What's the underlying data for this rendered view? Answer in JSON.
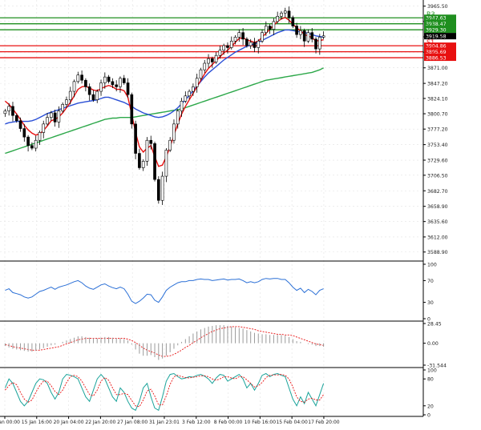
{
  "chart_data": {
    "type": "candlestick",
    "main_panel": {
      "ylim": [
        3580,
        3970
      ],
      "y_ticks": [
        3965.5,
        3942.0,
        3918.5,
        3895.0,
        3871.0,
        3847.2,
        3824.1,
        3800.7,
        3777.2,
        3753.4,
        3729.6,
        3706.5,
        3682.7,
        3658.9,
        3635.6,
        3612.0,
        3588.9
      ],
      "y_tick_labels": [
        "3965.50",
        "3942.00",
        "3918.50",
        "3895.00",
        "3871.00",
        "3847.20",
        "3824.10",
        "3800.70",
        "3777.20",
        "3753.40",
        "3729.60",
        "3706.50",
        "3682.70",
        "3658.90",
        "3635.60",
        "3612.00",
        "3588.90"
      ],
      "current_price": 3919.58,
      "current_price_label": "3919.58",
      "levels": [
        {
          "name": "R3",
          "value": 3947.63,
          "value_label": "3947.63",
          "color": "#1f8f1f"
        },
        {
          "name": "R2",
          "value": 3938.47,
          "value_label": "3938.47",
          "color": "#1f8f1f"
        },
        {
          "name": "R1",
          "value": 3929.3,
          "value_label": "3929.30",
          "color": "#1f8f1f"
        },
        {
          "name": "S1",
          "value": 3904.86,
          "value_label": "3904.86",
          "color": "#e81010"
        },
        {
          "name": "S2",
          "value": 3895.69,
          "value_label": "3895.69",
          "color": "#e81010"
        },
        {
          "name": "S3",
          "value": 3886.53,
          "value_label": "3886.53",
          "color": "#e81010"
        }
      ],
      "close": [
        3805,
        3812,
        3798,
        3790,
        3778,
        3765,
        3752,
        3748,
        3760,
        3772,
        3785,
        3795,
        3802,
        3788,
        3805,
        3815,
        3822,
        3835,
        3850,
        3860,
        3852,
        3842,
        3830,
        3822,
        3835,
        3848,
        3857,
        3850,
        3845,
        3842,
        3855,
        3848,
        3830,
        3785,
        3740,
        3718,
        3728,
        3760,
        3755,
        3700,
        3668,
        3705,
        3745,
        3760,
        3785,
        3805,
        3820,
        3828,
        3835,
        3842,
        3855,
        3868,
        3878,
        3885,
        3880,
        3890,
        3898,
        3905,
        3902,
        3912,
        3918,
        3925,
        3915,
        3905,
        3910,
        3902,
        3912,
        3925,
        3935,
        3930,
        3942,
        3950,
        3955,
        3958,
        3948,
        3935,
        3922,
        3928,
        3912,
        3925,
        3915,
        3900,
        3918,
        3920
      ],
      "ma_fast": {
        "color": "#e81010",
        "values": [
          3820,
          3815,
          3808,
          3800,
          3792,
          3783,
          3776,
          3771,
          3768,
          3770,
          3775,
          3782,
          3790,
          3792,
          3796,
          3802,
          3810,
          3818,
          3828,
          3838,
          3842,
          3843,
          3840,
          3837,
          3836,
          3839,
          3842,
          3844,
          3842,
          3838,
          3838,
          3836,
          3826,
          3800,
          3772,
          3750,
          3742,
          3748,
          3752,
          3735,
          3720,
          3722,
          3735,
          3750,
          3768,
          3785,
          3800,
          3812,
          3822,
          3832,
          3842,
          3852,
          3862,
          3870,
          3876,
          3882,
          3888,
          3894,
          3898,
          3904,
          3910,
          3916,
          3917,
          3914,
          3912,
          3910,
          3912,
          3918,
          3924,
          3930,
          3936,
          3942,
          3946,
          3948,
          3944,
          3938,
          3932,
          3928,
          3922,
          3920,
          3917,
          3912,
          3913,
          3914
        ]
      },
      "ma_mid": {
        "color": "#2a4fd6",
        "values": [
          3785,
          3787,
          3788,
          3789,
          3789,
          3789,
          3789,
          3790,
          3792,
          3795,
          3798,
          3801,
          3803,
          3805,
          3807,
          3809,
          3811,
          3813,
          3815,
          3817,
          3818,
          3819,
          3820,
          3821,
          3822,
          3824,
          3826,
          3826,
          3824,
          3822,
          3820,
          3818,
          3815,
          3812,
          3808,
          3805,
          3802,
          3800,
          3798,
          3796,
          3795,
          3796,
          3798,
          3801,
          3805,
          3810,
          3816,
          3822,
          3829,
          3836,
          3843,
          3850,
          3857,
          3863,
          3868,
          3873,
          3878,
          3883,
          3887,
          3891,
          3895,
          3898,
          3901,
          3904,
          3906,
          3908,
          3910,
          3913,
          3916,
          3919,
          3922,
          3925,
          3927,
          3929,
          3929,
          3928,
          3927,
          3926,
          3925,
          3924,
          3922,
          3920,
          3919,
          3918
        ]
      },
      "ma_slow": {
        "color": "#2da84a",
        "values": [
          3740,
          3742,
          3744,
          3746,
          3748,
          3750,
          3752,
          3754,
          3756,
          3758,
          3760,
          3762,
          3764,
          3766,
          3768,
          3770,
          3772,
          3774,
          3776,
          3778,
          3780,
          3782,
          3784,
          3786,
          3788,
          3790,
          3792,
          3793,
          3794,
          3794,
          3795,
          3795,
          3795,
          3795,
          3796,
          3797,
          3798,
          3799,
          3800,
          3801,
          3802,
          3803,
          3804,
          3805,
          3806,
          3807,
          3808,
          3810,
          3812,
          3814,
          3816,
          3818,
          3820,
          3822,
          3824,
          3826,
          3828,
          3830,
          3832,
          3834,
          3836,
          3838,
          3840,
          3842,
          3844,
          3846,
          3848,
          3850,
          3852,
          3853,
          3854,
          3855,
          3856,
          3857,
          3858,
          3859,
          3860,
          3861,
          3862,
          3863,
          3864,
          3866,
          3868,
          3871
        ]
      }
    },
    "panel_rsi": {
      "ylim": [
        0,
        100
      ],
      "y_ticks": [
        100,
        70,
        30,
        0
      ],
      "y_tick_labels": [
        "100",
        "70",
        "30",
        "0"
      ],
      "color": "#2a6fd6",
      "values": [
        52,
        55,
        48,
        46,
        44,
        40,
        38,
        40,
        45,
        50,
        52,
        55,
        58,
        54,
        58,
        60,
        62,
        65,
        68,
        70,
        66,
        60,
        56,
        54,
        58,
        62,
        64,
        60,
        57,
        55,
        58,
        55,
        45,
        32,
        28,
        32,
        38,
        45,
        44,
        34,
        30,
        40,
        52,
        58,
        62,
        66,
        68,
        68,
        70,
        70,
        72,
        73,
        72,
        72,
        70,
        71,
        72,
        73,
        71,
        72,
        72,
        73,
        70,
        66,
        68,
        66,
        68,
        72,
        74,
        73,
        74,
        74,
        72,
        72,
        66,
        58,
        52,
        56,
        48,
        54,
        50,
        44,
        52,
        55
      ]
    },
    "panel_macd": {
      "ylim": [
        -31.544,
        28.45
      ],
      "y_ticks": [
        28.45,
        0.0,
        -31.544
      ],
      "y_tick_labels": [
        "28.45",
        "0.00",
        "-31.544"
      ],
      "hist_color": "#9a9a9a",
      "signal_color": "#e81010",
      "histogram": [
        -4,
        -6,
        -8,
        -9,
        -10,
        -11,
        -12,
        -12,
        -11,
        -9,
        -7,
        -5,
        -3,
        -2,
        0,
        2,
        4,
        6,
        8,
        10,
        10,
        9,
        8,
        7,
        7,
        8,
        9,
        9,
        8,
        7,
        7,
        6,
        4,
        -2,
        -9,
        -15,
        -18,
        -18,
        -17,
        -20,
        -24,
        -22,
        -18,
        -13,
        -8,
        -3,
        2,
        6,
        10,
        14,
        17,
        20,
        22,
        24,
        25,
        26,
        26,
        26,
        25,
        24,
        23,
        22,
        21,
        19,
        17,
        15,
        14,
        13,
        13,
        12,
        12,
        12,
        12,
        11,
        9,
        6,
        3,
        2,
        0,
        -1,
        -2,
        -4,
        -4,
        -5
      ],
      "signal": [
        -2,
        -3,
        -5,
        -6,
        -7,
        -8,
        -9,
        -10,
        -10,
        -10,
        -9,
        -8,
        -7,
        -6,
        -5,
        -3,
        -1,
        1,
        3,
        5,
        6,
        7,
        7,
        7,
        7,
        7,
        7,
        7,
        7,
        7,
        7,
        7,
        6,
        4,
        1,
        -3,
        -7,
        -10,
        -12,
        -14,
        -17,
        -19,
        -19,
        -18,
        -16,
        -13,
        -10,
        -6,
        -3,
        1,
        4,
        8,
        11,
        14,
        17,
        19,
        21,
        22,
        23,
        24,
        24,
        24,
        23,
        22,
        21,
        20,
        18,
        17,
        16,
        15,
        14,
        13,
        13,
        12,
        12,
        11,
        9,
        7,
        5,
        3,
        1,
        -1,
        -2,
        -3
      ]
    },
    "panel_stoch": {
      "ylim": [
        0,
        100
      ],
      "y_ticks": [
        100,
        80,
        20,
        0
      ],
      "y_tick_labels": [
        "100",
        "80",
        "20",
        "0"
      ],
      "k_color": "#1aa39a",
      "d_color": "#e81010",
      "k": [
        60,
        80,
        70,
        50,
        30,
        20,
        30,
        50,
        70,
        80,
        78,
        70,
        50,
        35,
        50,
        80,
        90,
        88,
        85,
        80,
        60,
        40,
        30,
        55,
        80,
        90,
        80,
        60,
        40,
        30,
        60,
        50,
        30,
        15,
        10,
        30,
        60,
        70,
        40,
        15,
        10,
        40,
        75,
        90,
        92,
        85,
        80,
        82,
        85,
        84,
        88,
        90,
        86,
        80,
        70,
        82,
        90,
        88,
        75,
        80,
        85,
        90,
        80,
        60,
        70,
        55,
        70,
        88,
        92,
        85,
        90,
        92,
        88,
        85,
        60,
        35,
        20,
        40,
        25,
        50,
        35,
        20,
        45,
        70
      ],
      "d": [
        55,
        65,
        72,
        67,
        50,
        35,
        28,
        33,
        50,
        65,
        75,
        75,
        65,
        52,
        45,
        55,
        72,
        85,
        88,
        85,
        75,
        60,
        45,
        42,
        55,
        75,
        83,
        77,
        60,
        45,
        45,
        48,
        45,
        32,
        20,
        18,
        33,
        53,
        57,
        42,
        22,
        22,
        42,
        68,
        85,
        88,
        85,
        83,
        82,
        84,
        85,
        87,
        87,
        85,
        80,
        77,
        80,
        85,
        85,
        82,
        80,
        85,
        85,
        78,
        70,
        62,
        65,
        72,
        83,
        88,
        89,
        89,
        90,
        88,
        80,
        62,
        40,
        30,
        28,
        35,
        37,
        33,
        33,
        45
      ]
    },
    "x_tick_labels": [
      "13 Jan 00:00",
      "15 Jan 16:00",
      "20 Jan 04:00",
      "22 Jan 20:00",
      "27 Jan 08:00",
      "31 Jan 23:01",
      "3 Feb 12:00",
      "8 Feb 00:00",
      "10 Feb 16:00",
      "15 Feb 04:00",
      "17 Feb 20:00"
    ]
  }
}
